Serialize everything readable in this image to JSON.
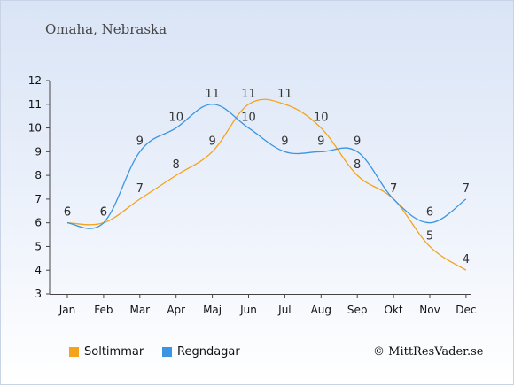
{
  "chart_data": {
    "type": "line",
    "title": "Omaha, Nebraska",
    "categories": [
      "Jan",
      "Feb",
      "Mar",
      "Apr",
      "Maj",
      "Jun",
      "Jul",
      "Aug",
      "Sep",
      "Okt",
      "Nov",
      "Dec"
    ],
    "ylim": [
      3,
      12
    ],
    "yticks": [
      3,
      4,
      5,
      6,
      7,
      8,
      9,
      10,
      11,
      12
    ],
    "grid": false,
    "legend_position": "bottom",
    "series": [
      {
        "name": "Soltimmar",
        "color": "#f5a31a",
        "values": [
          6,
          6,
          7,
          8,
          9,
          11,
          11,
          10,
          8,
          7,
          5,
          4
        ]
      },
      {
        "name": "Regndagar",
        "color": "#3b95e0",
        "values": [
          6,
          6,
          9,
          10,
          11,
          10,
          9,
          9,
          9,
          7,
          6,
          7
        ]
      }
    ],
    "copyright": "© MittResVader.se"
  }
}
